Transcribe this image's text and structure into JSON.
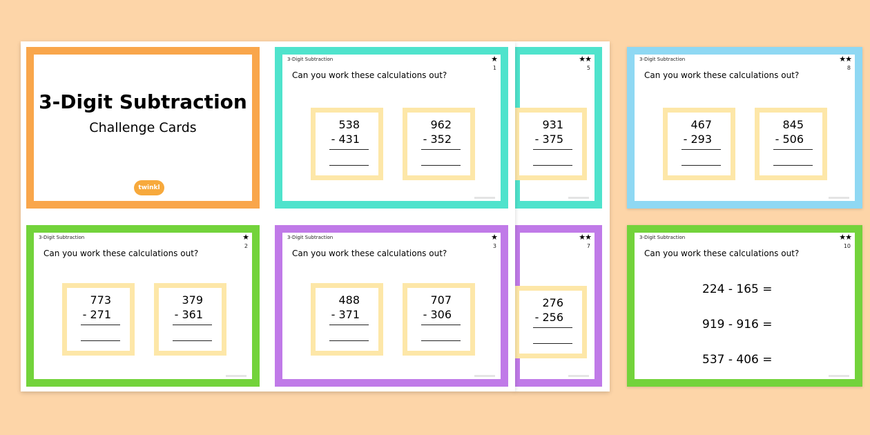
{
  "title_card": {
    "title": "3-Digit Subtraction",
    "subtitle": "Challenge Cards",
    "logo": "twinkl"
  },
  "common": {
    "header_label": "3-Digit Subtraction",
    "question": "Can you work these calculations out?"
  },
  "cards": {
    "c1": {
      "stars": "★",
      "number": "1",
      "a_top": "538",
      "a_bot": "- 431",
      "b_top": "962",
      "b_bot": "- 352"
    },
    "c5": {
      "stars": "★★",
      "number": "5",
      "a_top": "931",
      "a_bot": "- 375"
    },
    "c8": {
      "stars": "★★",
      "number": "8",
      "a_top": "467",
      "a_bot": "- 293",
      "b_top": "845",
      "b_bot": "- 506"
    },
    "c2": {
      "stars": "★",
      "number": "2",
      "a_top": "773",
      "a_bot": "- 271",
      "b_top": "379",
      "b_bot": "- 361"
    },
    "c3": {
      "stars": "★",
      "number": "3",
      "a_top": "488",
      "a_bot": "- 371",
      "b_top": "707",
      "b_bot": "- 306"
    },
    "c7": {
      "stars": "★★",
      "number": "7",
      "a_top": "276",
      "a_bot": "- 256"
    },
    "c10": {
      "stars": "★★",
      "number": "10",
      "eq1": "224  -  165  =",
      "eq2": "919  -  916  =",
      "eq3": "537  -  406  ="
    }
  },
  "colors": {
    "background": "#fdd5a8",
    "orange": "#f9a64b",
    "teal": "#4fe3cc",
    "green": "#73d33b",
    "purple": "#c07ae8",
    "blue": "#8fd8f3",
    "calc_box": "#fde7a8"
  },
  "icons": {
    "difficulty": "star-icon"
  }
}
